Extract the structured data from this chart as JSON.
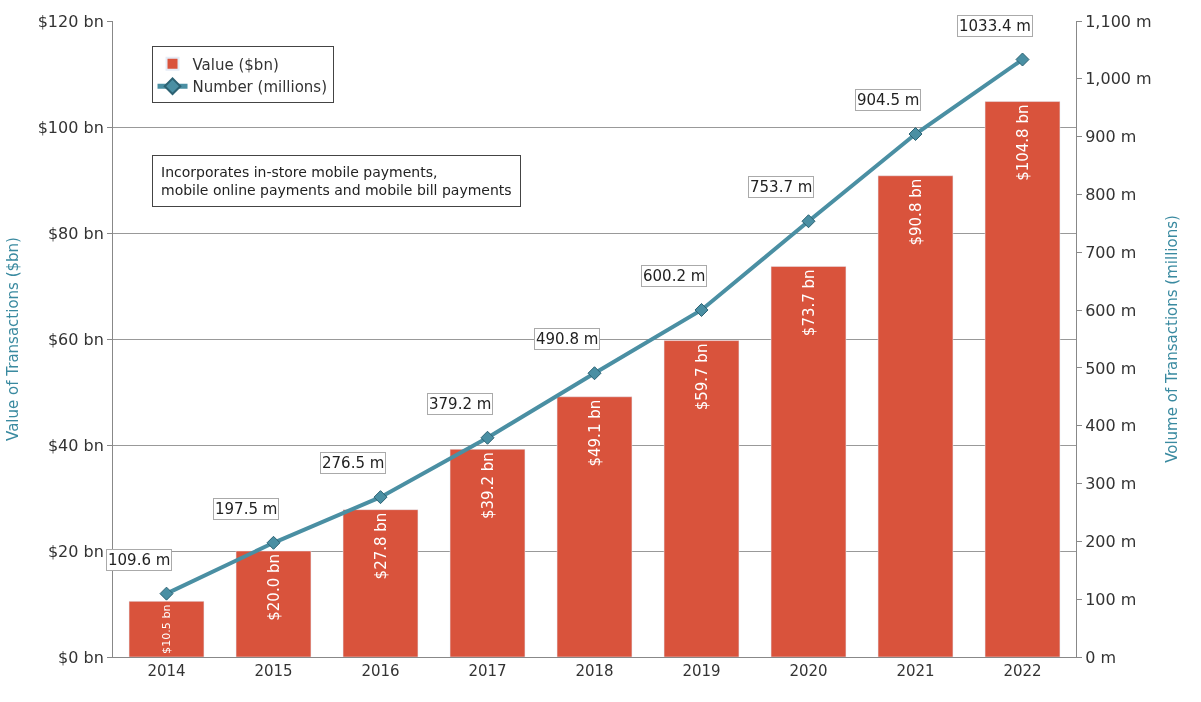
{
  "chart_data": {
    "type": "bar",
    "ylabel": "Value of Transactions ($bn)",
    "y2label": "Volume of Transactions (millions)",
    "categories": [
      "2014",
      "2015",
      "2016",
      "2017",
      "2018",
      "2019",
      "2020",
      "2021",
      "2022"
    ],
    "series": [
      {
        "name": "Value ($bn)",
        "color": "#d9533c",
        "values": [
          10.5,
          20.0,
          27.8,
          39.2,
          49.1,
          59.7,
          73.7,
          90.8,
          104.8
        ],
        "value_labels": [
          "$10.5 bn",
          "$20.0 bn",
          "$27.8 bn",
          "$39.2 bn",
          "$49.1 bn",
          "$59.7 bn",
          "$73.7 bn",
          "$90.8 bn",
          "$104.8 bn"
        ]
      },
      {
        "name": "Number (millions)",
        "type": "line",
        "axis": "y2",
        "color": "#4a8fa3",
        "marker": "diamond",
        "values": [
          109.6,
          197.5,
          276.5,
          379.2,
          490.8,
          600.2,
          753.7,
          904.5,
          1033.4
        ],
        "value_labels": [
          "109.6 m",
          "197.5 m",
          "276.5 m",
          "379.2 m",
          "490.8 m",
          "600.2 m",
          "753.7 m",
          "904.5 m",
          "1033.4 m"
        ]
      }
    ],
    "ylim": [
      0,
      120
    ],
    "yticks": [
      {
        "value": 0,
        "label": "$0 bn"
      },
      {
        "value": 20,
        "label": "$20 bn"
      },
      {
        "value": 40,
        "label": "$40 bn"
      },
      {
        "value": 60,
        "label": "$60 bn"
      },
      {
        "value": 80,
        "label": "$80 bn"
      },
      {
        "value": 100,
        "label": "$100 bn"
      },
      {
        "value": 120,
        "label": "$120 bn"
      }
    ],
    "y2lim": [
      0,
      1100
    ],
    "y2ticks": [
      {
        "value": 0,
        "label": "0 m"
      },
      {
        "value": 100,
        "label": "100 m"
      },
      {
        "value": 200,
        "label": "200 m"
      },
      {
        "value": 300,
        "label": "300 m"
      },
      {
        "value": 400,
        "label": "400 m"
      },
      {
        "value": 500,
        "label": "500 m"
      },
      {
        "value": 600,
        "label": "600 m"
      },
      {
        "value": 700,
        "label": "700 m"
      },
      {
        "value": 800,
        "label": "800 m"
      },
      {
        "value": 900,
        "label": "900 m"
      },
      {
        "value": 1000,
        "label": "1,000 m"
      },
      {
        "value": 1100,
        "label": "1,100 m"
      }
    ],
    "annotations": [
      "Incorporates in-store mobile payments,\nmobile online payments and mobile bill payments"
    ],
    "grid": "y",
    "legend": "top left"
  }
}
